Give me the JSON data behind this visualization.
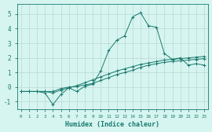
{
  "xlabel": "Humidex (Indice chaleur)",
  "xlim": [
    -0.5,
    23.5
  ],
  "ylim": [
    -1.5,
    5.7
  ],
  "yticks": [
    -1,
    0,
    1,
    2,
    3,
    4,
    5
  ],
  "xticks": [
    0,
    1,
    2,
    3,
    4,
    5,
    6,
    7,
    8,
    9,
    10,
    11,
    12,
    13,
    14,
    15,
    16,
    17,
    18,
    19,
    20,
    21,
    22,
    23
  ],
  "bg_color": "#d6f5f0",
  "line_color": "#1a7a6e",
  "grid_color": "#b8d8d4",
  "line1_x": [
    0,
    1,
    2,
    3,
    4,
    5,
    6,
    7,
    8,
    9,
    10,
    11,
    12,
    13,
    14,
    15,
    16,
    17,
    18,
    19,
    20,
    21,
    22,
    23
  ],
  "line1_y": [
    -0.3,
    -0.3,
    -0.3,
    -0.4,
    -1.2,
    -0.5,
    -0.05,
    -0.3,
    0.05,
    0.2,
    1.1,
    2.5,
    3.2,
    3.5,
    4.8,
    5.1,
    4.2,
    4.1,
    2.3,
    1.9,
    2.0,
    1.5,
    1.6,
    1.5
  ],
  "line2_x": [
    0,
    1,
    2,
    3,
    4,
    5,
    6,
    7,
    8,
    9,
    10,
    11,
    12,
    13,
    14,
    15,
    16,
    17,
    18,
    19,
    20,
    21,
    22,
    23
  ],
  "line2_y": [
    -0.3,
    -0.3,
    -0.3,
    -0.3,
    -0.3,
    -0.1,
    0.0,
    0.05,
    0.15,
    0.25,
    0.45,
    0.65,
    0.85,
    1.0,
    1.15,
    1.35,
    1.5,
    1.6,
    1.7,
    1.75,
    1.8,
    1.85,
    1.9,
    1.95
  ],
  "line3_x": [
    0,
    1,
    2,
    3,
    4,
    5,
    6,
    7,
    8,
    9,
    10,
    11,
    12,
    13,
    14,
    15,
    16,
    17,
    18,
    19,
    20,
    21,
    22,
    23
  ],
  "line3_y": [
    -0.3,
    -0.3,
    -0.3,
    -0.3,
    -0.4,
    -0.2,
    -0.05,
    0.1,
    0.3,
    0.5,
    0.7,
    0.9,
    1.1,
    1.25,
    1.4,
    1.55,
    1.65,
    1.75,
    1.85,
    1.9,
    1.95,
    2.0,
    2.05,
    2.1
  ]
}
